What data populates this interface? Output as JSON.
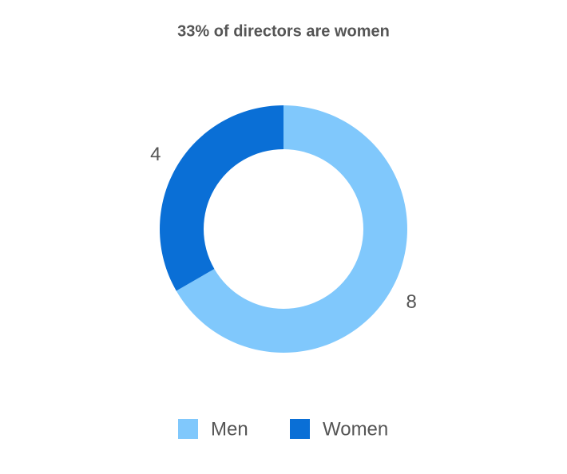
{
  "chart_data": {
    "type": "donut",
    "title": "33% of directors are women",
    "categories": [
      "Men",
      "Women"
    ],
    "values": [
      8,
      4
    ],
    "colors": [
      "#80c8fc",
      "#0a6fd6"
    ],
    "legend": "bottom"
  }
}
